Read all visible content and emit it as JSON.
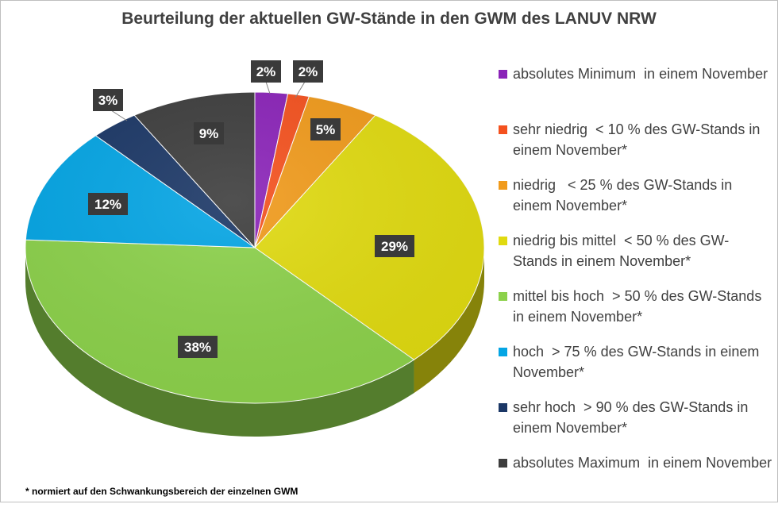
{
  "chart_data": {
    "type": "pie",
    "title": "Beurteilung der aktuellen GW-Stände in den GWM des LANUV NRW",
    "categories": [
      "absolutes Minimum  in einem November",
      "sehr niedrig  < 10 % des GW-Stands in einem November*",
      "niedrig   < 25 % des GW-Stands in einem November*",
      "niedrig bis mittel  < 50 % des GW-Stands in einem November*",
      "mittel bis hoch  > 50 % des GW-Stands in einem November*",
      "hoch  > 75 % des GW-Stands in einem November*",
      "sehr hoch  > 90 % des GW-Stands in einem November*",
      "absolutes Maximum  in einem November"
    ],
    "values": [
      2.3,
      1.5,
      5,
      29,
      38,
      12,
      3.4,
      8.8
    ],
    "data_labels": [
      "2%",
      "2%",
      "5%",
      "29%",
      "38%",
      "12%",
      "3%",
      "9%"
    ],
    "colors": [
      "#8a23b8",
      "#f4511e",
      "#f09a1b",
      "#e0da10",
      "#8cd14b",
      "#04a5e4",
      "#1b3766",
      "#3d3d3d"
    ],
    "legend_position": "right"
  },
  "footnote": "* normiert auf den Schwankungsbereich der einzelnen GWM"
}
